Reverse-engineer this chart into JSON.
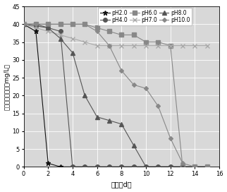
{
  "title": "",
  "xlabel": "时间（d）",
  "ylabel": "剩余六价铬浓度（mg/L）",
  "xlim": [
    0,
    16
  ],
  "ylim": [
    0,
    45
  ],
  "xticks": [
    0,
    2,
    4,
    6,
    8,
    10,
    12,
    14,
    16
  ],
  "yticks": [
    0,
    5,
    10,
    15,
    20,
    25,
    30,
    35,
    40,
    45
  ],
  "series": {
    "pH2.0": {
      "x": [
        0,
        1,
        2,
        3,
        4,
        5,
        6,
        7,
        8,
        9,
        10,
        11,
        12,
        13,
        14,
        15
      ],
      "y": [
        40,
        38,
        1,
        0,
        0,
        0,
        0,
        0,
        0,
        0,
        0,
        0,
        0,
        0,
        0,
        0
      ],
      "color": "#111111",
      "marker": "*",
      "linestyle": "-",
      "markersize": 5
    },
    "pH4.0": {
      "x": [
        0,
        1,
        2,
        3,
        4,
        5,
        6,
        7,
        8,
        9,
        10,
        11,
        12,
        13,
        14,
        15
      ],
      "y": [
        40,
        39.5,
        39,
        38,
        0,
        0,
        0,
        0,
        0,
        0,
        0,
        0,
        0,
        0,
        0,
        0
      ],
      "color": "#555555",
      "marker": "o",
      "linestyle": "-",
      "markersize": 4
    },
    "pH6.0": {
      "x": [
        0,
        1,
        2,
        3,
        4,
        5,
        6,
        7,
        8,
        9,
        10,
        11,
        12,
        13,
        14,
        15
      ],
      "y": [
        40,
        40,
        40,
        40,
        40,
        40,
        39,
        38,
        37,
        37,
        35,
        35,
        34,
        0,
        0,
        0
      ],
      "color": "#888888",
      "marker": "s",
      "linestyle": "-",
      "markersize": 4
    },
    "pH7.0": {
      "x": [
        0,
        1,
        2,
        3,
        4,
        5,
        6,
        7,
        8,
        9,
        10,
        11,
        12,
        13,
        14,
        15
      ],
      "y": [
        40,
        39,
        38,
        37,
        36,
        35,
        34,
        34,
        34,
        34,
        34,
        34,
        34,
        34,
        34,
        34
      ],
      "color": "#aaaaaa",
      "marker": "x",
      "linestyle": "-",
      "markersize": 4
    },
    "pH8.0": {
      "x": [
        0,
        1,
        2,
        3,
        4,
        5,
        6,
        7,
        8,
        9,
        10,
        11,
        12,
        13,
        14,
        15
      ],
      "y": [
        40,
        40,
        39,
        36,
        32,
        20,
        14,
        13,
        12,
        6,
        0,
        0,
        0,
        0,
        0,
        0
      ],
      "color": "#555555",
      "marker": "^",
      "linestyle": "-",
      "markersize": 4
    },
    "pH10.0": {
      "x": [
        0,
        1,
        2,
        3,
        4,
        5,
        6,
        7,
        8,
        9,
        10,
        11,
        12,
        13,
        14,
        15
      ],
      "y": [
        40,
        40,
        40,
        40,
        40,
        40,
        38,
        34,
        27,
        23,
        22,
        17,
        8,
        1,
        0,
        0
      ],
      "color": "#888888",
      "marker": "D",
      "linestyle": "-",
      "markersize": 3
    }
  },
  "legend_order": [
    "pH2.0",
    "pH4.0",
    "pH6.0",
    "pH7.0",
    "pH8.0",
    "pH10.0"
  ],
  "background_color": "#d8d8d8",
  "grid_color": "#ffffff",
  "fig_color": "#ffffff"
}
